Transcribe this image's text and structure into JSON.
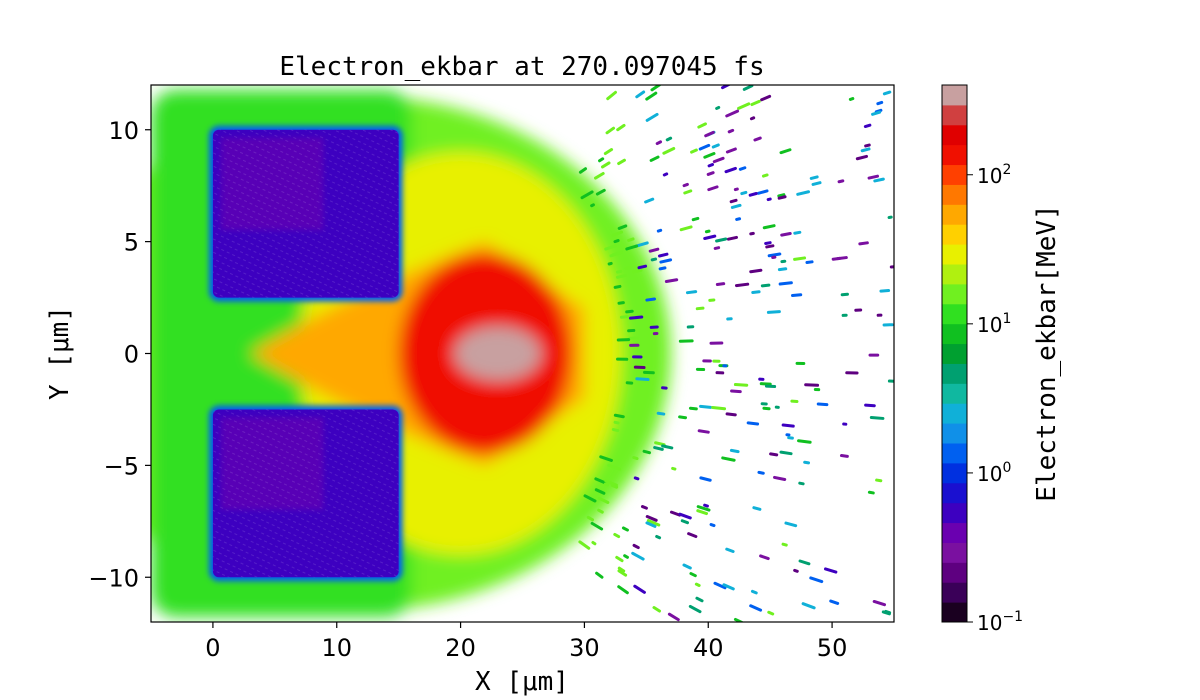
{
  "chart_data": {
    "type": "heatmap",
    "title": "Electron_ekbar at 270.097045 fs",
    "xlabel": "X [μm]",
    "ylabel": "Y [μm]",
    "xlim": [
      -5,
      55
    ],
    "ylim": [
      -12,
      12
    ],
    "x_ticks": [
      0,
      10,
      20,
      30,
      40,
      50
    ],
    "x_tick_labels": [
      "0",
      "10",
      "20",
      "30",
      "40",
      "50"
    ],
    "y_ticks": [
      -10,
      -5,
      0,
      5,
      10
    ],
    "y_tick_labels": [
      "−10",
      "−5",
      "0",
      "5",
      "10"
    ],
    "colorbar": {
      "label": "Electron_ekbar[MeV]",
      "scale": "log",
      "range": [
        0.1,
        400
      ],
      "ticks": [
        0.1,
        1,
        10,
        100
      ],
      "tick_bases": [
        "10",
        "10",
        "10",
        "10"
      ],
      "tick_exponents": [
        "−1",
        "0",
        "1",
        "2"
      ],
      "colors": [
        "#1a0020",
        "#3a0058",
        "#5e0080",
        "#7a10a0",
        "#6a00b0",
        "#3d00c0",
        "#1a10d0",
        "#0030e0",
        "#0060f0",
        "#1090e8",
        "#10b0d8",
        "#10b8a0",
        "#00a070",
        "#00a030",
        "#10c020",
        "#30e020",
        "#70f020",
        "#b0f010",
        "#e8f000",
        "#ffd000",
        "#ffa800",
        "#ff7800",
        "#ff4000",
        "#f01000",
        "#e00000",
        "#d04040",
        "#c8a0a0"
      ]
    },
    "regions": [
      {
        "name": "upper-target",
        "x": [
          0,
          15
        ],
        "y": [
          2.5,
          10
        ],
        "level_MeV": 0.5
      },
      {
        "name": "lower-target",
        "x": [
          0,
          15
        ],
        "y": [
          -10,
          -2.5
        ],
        "level_MeV": 0.5
      },
      {
        "name": "hot-core",
        "center": [
          22,
          0
        ],
        "level_MeV": 300
      }
    ]
  }
}
